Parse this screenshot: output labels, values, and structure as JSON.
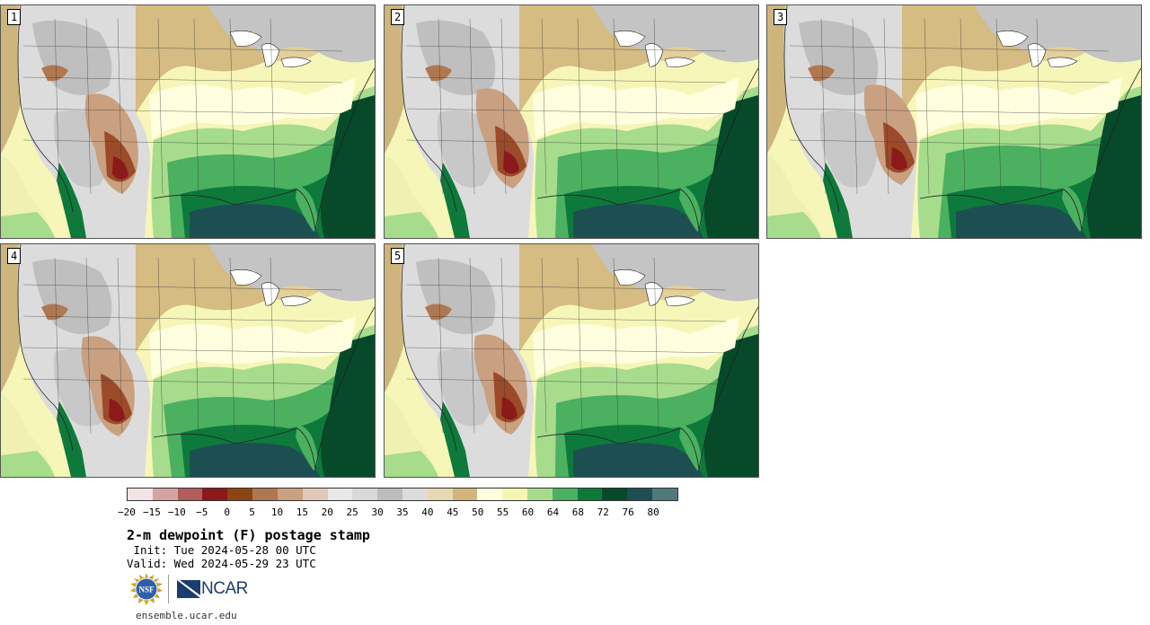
{
  "panels": [
    {
      "label": "1"
    },
    {
      "label": "2"
    },
    {
      "label": "3"
    },
    {
      "label": "4"
    },
    {
      "label": "5"
    }
  ],
  "colorbar": {
    "colors": [
      "#f2e4e4",
      "#d6a3a3",
      "#b35c5c",
      "#8c1a1a",
      "#8b4513",
      "#b07850",
      "#c9a080",
      "#e0c8b8",
      "#e8e8e8",
      "#d8d8d8",
      "#bdbdbd",
      "#dcdcdc",
      "#e6d8b0",
      "#d1b57a",
      "#ffffe0",
      "#f6f6b4",
      "#a6dc8c",
      "#4bb060",
      "#0d7a3c",
      "#074a2a",
      "#1d4f52",
      "#507a7a"
    ],
    "ticks": [
      "−20",
      "−15",
      "−10",
      "−5",
      "0",
      "5",
      "10",
      "15",
      "20",
      "25",
      "30",
      "35",
      "40",
      "45",
      "50",
      "55",
      "60",
      "64",
      "68",
      "72",
      "76",
      "80"
    ]
  },
  "title": "2-m dewpoint (F) postage stamp",
  "init": " Init: Tue 2024-05-28 00 UTC",
  "valid": "Valid: Wed 2024-05-29 23 UTC",
  "footer": {
    "nsf_logo_text": "NSF",
    "ncar_logo_text": "NCAR",
    "site": "ensemble.ucar.edu"
  }
}
